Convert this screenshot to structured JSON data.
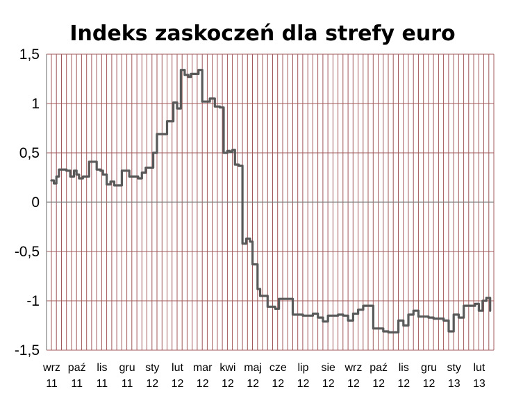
{
  "chart_data": {
    "type": "line",
    "title": "Indeks zaskoczeń dla strefy euro",
    "xlabel": "",
    "ylabel": "",
    "ylim": [
      -1.5,
      1.5
    ],
    "yticks": [
      "1,5",
      "1",
      "0,5",
      "0",
      "-0,5",
      "-1",
      "-1,5"
    ],
    "ytick_values": [
      1.5,
      1,
      0.5,
      0,
      -0.5,
      -1,
      -1.5
    ],
    "categories": [
      {
        "month": "wrz",
        "year": "11"
      },
      {
        "month": "paź",
        "year": "11"
      },
      {
        "month": "lis",
        "year": "11"
      },
      {
        "month": "gru",
        "year": "11"
      },
      {
        "month": "sty",
        "year": "12"
      },
      {
        "month": "lut",
        "year": "12"
      },
      {
        "month": "mar",
        "year": "12"
      },
      {
        "month": "kwi",
        "year": "12"
      },
      {
        "month": "maj",
        "year": "12"
      },
      {
        "month": "cze",
        "year": "12"
      },
      {
        "month": "lip",
        "year": "12"
      },
      {
        "month": "sie",
        "year": "12"
      },
      {
        "month": "wrz",
        "year": "12"
      },
      {
        "month": "paź",
        "year": "12"
      },
      {
        "month": "lis",
        "year": "12"
      },
      {
        "month": "gru",
        "year": "12"
      },
      {
        "month": "sty",
        "year": "13"
      },
      {
        "month": "lut",
        "year": "13"
      }
    ],
    "grid": {
      "vertical": true,
      "horizontal": true
    },
    "colors": {
      "line": "#595959",
      "grid": "#a0585a",
      "axis": "#808080"
    },
    "series": [
      {
        "x": [
          0.0,
          0.1,
          0.2,
          0.3,
          0.45,
          0.6,
          0.75,
          0.9,
          1.0,
          1.1,
          1.25,
          1.35,
          1.5,
          1.65,
          1.8,
          1.95,
          2.05,
          2.2,
          2.35,
          2.5,
          2.65,
          2.8,
          2.95,
          3.1,
          3.3,
          3.45,
          3.6,
          3.75,
          3.9,
          4.05,
          4.2,
          4.35,
          4.5,
          4.6,
          4.7,
          4.85,
          5.0,
          5.15,
          5.3,
          5.45,
          5.55,
          5.7,
          5.85,
          6.0,
          6.15,
          6.3,
          6.4,
          6.5,
          6.7,
          6.85,
          7.0,
          7.1,
          7.2,
          7.3,
          7.45,
          7.6,
          7.75,
          7.9,
          8.0,
          8.1,
          8.2,
          8.3,
          8.45,
          8.6,
          8.75,
          8.9,
          9.05,
          9.2,
          9.4,
          9.6,
          9.8,
          10.0,
          10.2,
          10.4,
          10.6,
          10.8,
          11.0,
          11.2,
          11.4,
          11.6,
          11.8,
          12.0,
          12.2,
          12.4,
          12.6,
          12.8,
          13.0,
          13.2,
          13.4,
          13.6,
          13.8,
          14.0,
          14.2,
          14.4,
          14.6,
          14.8,
          15.0,
          15.2,
          15.4,
          15.6,
          15.8,
          16.0,
          16.2,
          16.4,
          16.55,
          16.7,
          16.85,
          17.0,
          17.15,
          17.3,
          17.45
        ],
        "values": [
          0.22,
          0.19,
          0.26,
          0.33,
          0.33,
          0.32,
          0.26,
          0.32,
          0.28,
          0.24,
          0.26,
          0.26,
          0.41,
          0.41,
          0.33,
          0.32,
          0.28,
          0.18,
          0.21,
          0.17,
          0.17,
          0.32,
          0.32,
          0.26,
          0.26,
          0.24,
          0.3,
          0.35,
          0.35,
          0.5,
          0.69,
          0.69,
          0.69,
          0.82,
          0.82,
          1.01,
          0.95,
          1.34,
          1.29,
          1.27,
          1.3,
          1.3,
          1.34,
          1.02,
          1.02,
          1.05,
          1.05,
          0.97,
          0.96,
          0.5,
          0.52,
          0.51,
          0.53,
          0.38,
          0.37,
          -0.42,
          -0.37,
          -0.4,
          -0.63,
          -0.63,
          -0.88,
          -0.95,
          -0.95,
          -1.06,
          -1.06,
          -1.08,
          -0.98,
          -0.98,
          -0.98,
          -1.14,
          -1.14,
          -1.15,
          -1.15,
          -1.13,
          -1.17,
          -1.21,
          -1.15,
          -1.15,
          -1.14,
          -1.15,
          -1.2,
          -1.13,
          -1.09,
          -1.05,
          -1.05,
          -1.28,
          -1.28,
          -1.31,
          -1.32,
          -1.32,
          -1.2,
          -1.25,
          -1.14,
          -1.1,
          -1.16,
          -1.16,
          -1.17,
          -1.18,
          -1.18,
          -1.2,
          -1.31,
          -1.14,
          -1.17,
          -1.05,
          -1.05,
          -1.05,
          -1.03,
          -1.1,
          -1.0,
          -0.97,
          -1.1
        ]
      }
    ]
  }
}
